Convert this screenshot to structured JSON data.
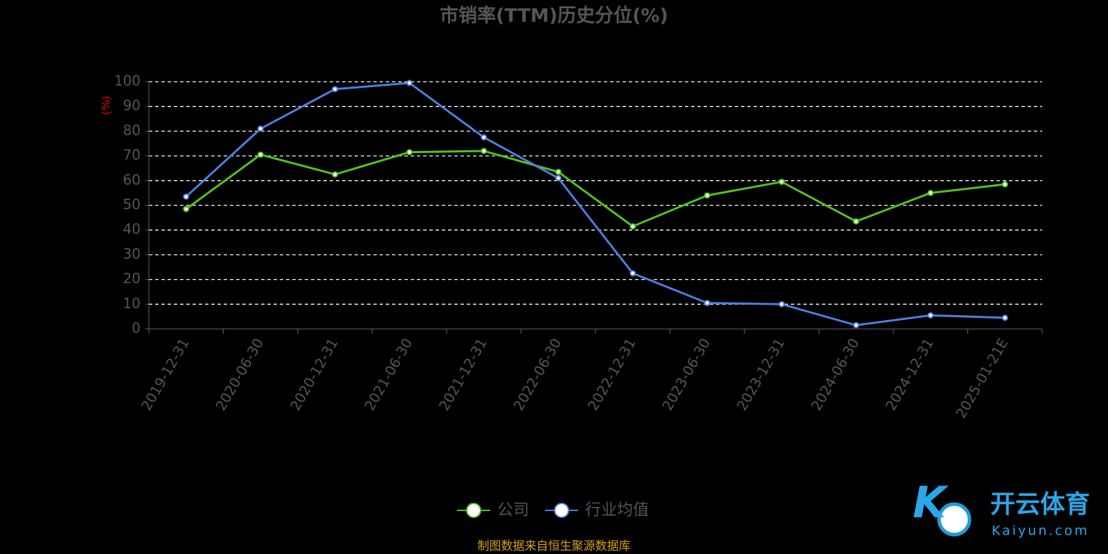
{
  "chart_data": {
    "type": "line",
    "title": "市销率(TTM)历史分位(%)",
    "y_label": "(%)",
    "categories": [
      "2019-12-31",
      "2020-06-30",
      "2020-12-31",
      "2021-06-30",
      "2021-12-31",
      "2022-06-30",
      "2022-12-31",
      "2023-06-30",
      "2023-12-31",
      "2024-06-30",
      "2024-12-31",
      "2025-01-21E"
    ],
    "series": [
      {
        "name": "公司",
        "color": "#52c41a",
        "values": [
          48.5,
          70.5,
          62.5,
          71.5,
          72,
          63.5,
          41.5,
          54,
          59.5,
          43.5,
          55,
          58.5
        ]
      },
      {
        "name": "行业均值",
        "color": "#4e7fe0",
        "values": [
          53.5,
          81,
          97,
          99.5,
          77.5,
          61,
          22.5,
          10.5,
          10,
          1.5,
          5.5,
          4.5
        ]
      }
    ],
    "ylim": [
      0,
      100
    ],
    "yticks": [
      0,
      10,
      20,
      30,
      40,
      50,
      60,
      70,
      80,
      90,
      100
    ],
    "grid": true,
    "legend": "bottom",
    "source": "制图数据来自恒生聚源数据库"
  },
  "watermark": {
    "brand": "开云体育",
    "site": "Kaiyun.com"
  }
}
